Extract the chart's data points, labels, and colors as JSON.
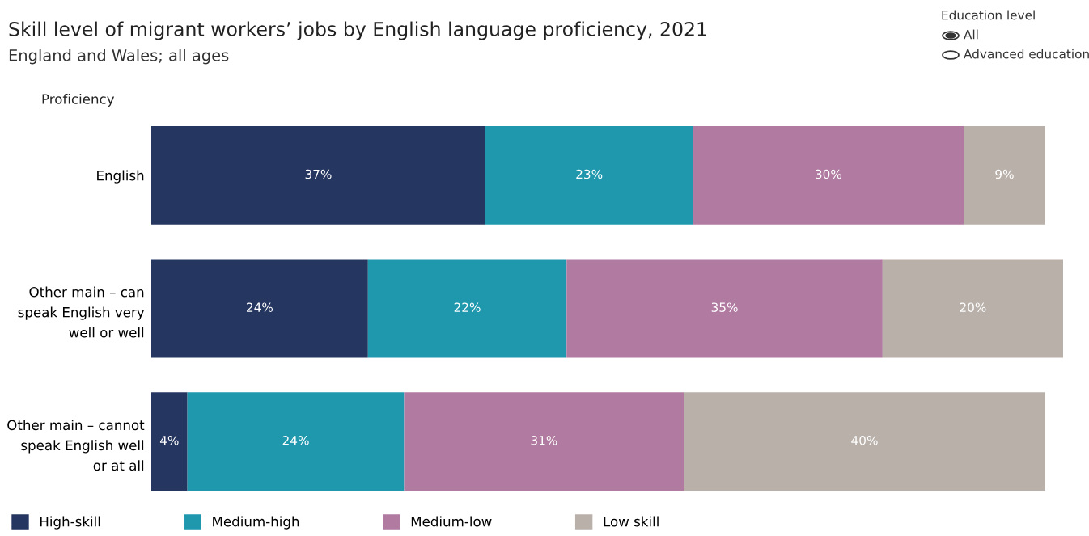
{
  "chart_data": {
    "type": "bar",
    "orientation": "horizontal",
    "stacked": true,
    "title": "Skill level of migrant workers’ jobs by English language proficiency, 2021",
    "subtitle": "England and Wales; all ages",
    "ylabel": "Proficiency",
    "categories": [
      "English",
      "Other main – can\nspeak English very\nwell or well",
      "Other main – cannot\nspeak English well\nor at all"
    ],
    "series": [
      {
        "name": "High-skill",
        "color": "#253660",
        "values": [
          37,
          24,
          4
        ],
        "value_labels": [
          "37%",
          "24%",
          "4%"
        ]
      },
      {
        "name": "Medium-high",
        "color": "#1f98ae",
        "values": [
          23,
          22,
          24
        ],
        "value_labels": [
          "23%",
          "22%",
          "24%"
        ]
      },
      {
        "name": "Medium-low",
        "color": "#b07aa1",
        "values": [
          30,
          35,
          31
        ],
        "value_labels": [
          "30%",
          "35%",
          "31%"
        ]
      },
      {
        "name": "Low skill",
        "color": "#b9b0aa",
        "values": [
          9,
          20,
          40
        ],
        "value_labels": [
          "9%",
          "20%",
          "40%"
        ]
      }
    ],
    "legend": "bottom",
    "grid": false,
    "tick_labels": "y",
    "annotations": [
      "Education level",
      "All",
      "Advanced education"
    ]
  }
}
